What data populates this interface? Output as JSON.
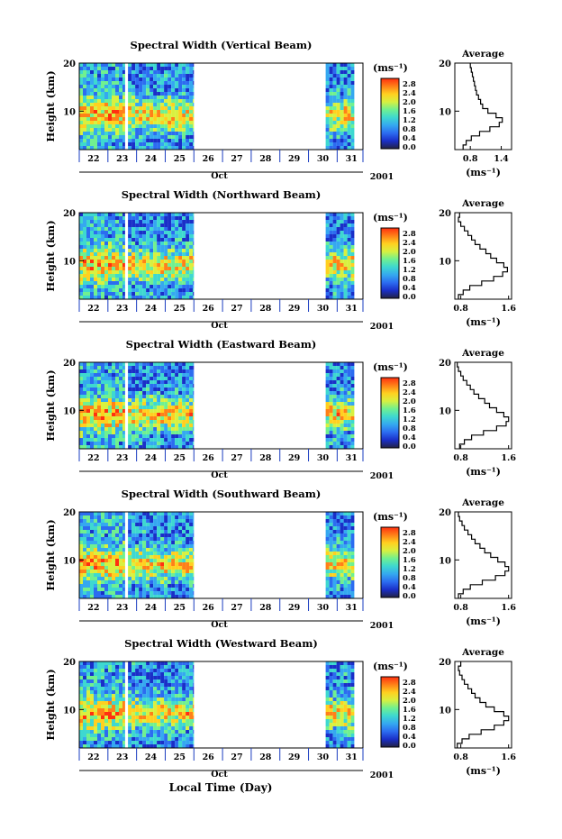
{
  "xlabel": "Local Time (Day)",
  "colorbar": {
    "unit": "(ms⁻¹)",
    "ticks": [
      "2.8",
      "2.4",
      "2.0",
      "1.6",
      "1.2",
      "0.8",
      "0.4",
      "0.0"
    ],
    "colors": [
      "#222244",
      "#1a2fc8",
      "#2c6cf0",
      "#35a8f0",
      "#3ed8d0",
      "#70f090",
      "#d8f040",
      "#ffd020",
      "#ff8018",
      "#ff3010"
    ]
  },
  "chart_data": [
    {
      "type": "heatmap",
      "title": "Spectral Width (Vertical Beam)",
      "ylabel": "Height (km)",
      "ylim": [
        2,
        20
      ],
      "y_ticks": [
        "20",
        "10"
      ],
      "x_ticks": [
        "22",
        "23",
        "24",
        "25",
        "26",
        "27",
        "28",
        "29",
        "30",
        "31"
      ],
      "month": "Oct",
      "year": "2001",
      "data_coverage_days": [
        [
          22,
          23.6
        ],
        [
          23.7,
          26.0
        ],
        [
          30.6,
          31.6
        ]
      ],
      "average_profile": {
        "title": "Average",
        "xlabel": "(ms⁻¹)",
        "x_ticks": [
          "0.8",
          "1.4"
        ],
        "xlim": [
          0.5,
          1.6
        ],
        "y_ticks": [
          "20",
          "10"
        ],
        "values": [
          0.66,
          0.72,
          0.82,
          0.98,
          1.18,
          1.36,
          1.42,
          1.3,
          1.14,
          1.04,
          1.0,
          0.96,
          0.92,
          0.9,
          0.88,
          0.86,
          0.84,
          0.82,
          0.8
        ]
      }
    },
    {
      "type": "heatmap",
      "title": "Spectral Width (Northward Beam)",
      "ylabel": "Height (km)",
      "ylim": [
        2,
        20
      ],
      "y_ticks": [
        "20",
        "10"
      ],
      "x_ticks": [
        "22",
        "23",
        "24",
        "25",
        "26",
        "27",
        "28",
        "29",
        "30",
        "31"
      ],
      "month": "Oct",
      "year": "2001",
      "data_coverage_days": [
        [
          22,
          23.6
        ],
        [
          23.7,
          26.0
        ],
        [
          30.6,
          31.6
        ]
      ],
      "average_profile": {
        "title": "Average",
        "xlabel": "(ms⁻¹)",
        "x_ticks": [
          "0.8",
          "1.6"
        ],
        "xlim": [
          0.7,
          1.65
        ],
        "y_ticks": [
          "20",
          "10"
        ],
        "values": [
          0.76,
          0.84,
          0.95,
          1.15,
          1.35,
          1.5,
          1.58,
          1.52,
          1.4,
          1.3,
          1.22,
          1.12,
          1.04,
          0.98,
          0.92,
          0.86,
          0.8,
          0.76,
          0.78
        ]
      }
    },
    {
      "type": "heatmap",
      "title": "Spectral Width (Eastward Beam)",
      "ylabel": "Height (km)",
      "ylim": [
        2,
        20
      ],
      "y_ticks": [
        "20",
        "10"
      ],
      "x_ticks": [
        "22",
        "23",
        "24",
        "25",
        "26",
        "27",
        "28",
        "29",
        "30",
        "31"
      ],
      "month": "Oct",
      "year": "2001",
      "data_coverage_days": [
        [
          22,
          23.6
        ],
        [
          23.7,
          26.0
        ],
        [
          30.6,
          31.6
        ]
      ],
      "average_profile": {
        "title": "Average",
        "xlabel": "(ms⁻¹)",
        "x_ticks": [
          "0.8",
          "1.6"
        ],
        "xlim": [
          0.7,
          1.65
        ],
        "y_ticks": [
          "20",
          "10"
        ],
        "values": [
          0.78,
          0.86,
          0.98,
          1.18,
          1.4,
          1.56,
          1.6,
          1.52,
          1.4,
          1.28,
          1.2,
          1.1,
          1.02,
          0.96,
          0.9,
          0.84,
          0.8,
          0.76,
          0.74
        ]
      }
    },
    {
      "type": "heatmap",
      "title": "Spectral Width (Southward Beam)",
      "ylabel": "Height (km)",
      "ylim": [
        2,
        20
      ],
      "y_ticks": [
        "20",
        "10"
      ],
      "x_ticks": [
        "22",
        "23",
        "24",
        "25",
        "26",
        "27",
        "28",
        "29",
        "30",
        "31"
      ],
      "month": "Oct",
      "year": "2001",
      "data_coverage_days": [
        [
          22,
          23.6
        ],
        [
          23.7,
          26.0
        ],
        [
          30.6,
          31.6
        ]
      ],
      "average_profile": {
        "title": "Average",
        "xlabel": "(ms⁻¹)",
        "x_ticks": [
          "0.8",
          "1.6"
        ],
        "xlim": [
          0.7,
          1.65
        ],
        "y_ticks": [
          "20",
          "10"
        ],
        "values": [
          0.76,
          0.84,
          0.96,
          1.16,
          1.38,
          1.54,
          1.6,
          1.54,
          1.42,
          1.3,
          1.2,
          1.12,
          1.04,
          0.98,
          0.92,
          0.86,
          0.82,
          0.78,
          0.76
        ]
      }
    },
    {
      "type": "heatmap",
      "title": "Spectral Width (Westward Beam)",
      "ylabel": "Height (km)",
      "ylim": [
        2,
        20
      ],
      "y_ticks": [
        "20",
        "10"
      ],
      "x_ticks": [
        "22",
        "23",
        "24",
        "25",
        "26",
        "27",
        "28",
        "29",
        "30",
        "31"
      ],
      "month": "Oct",
      "year": "2001",
      "data_coverage_days": [
        [
          22,
          23.6
        ],
        [
          23.7,
          26.0
        ],
        [
          30.6,
          31.6
        ]
      ],
      "average_profile": {
        "title": "Average",
        "xlabel": "(ms⁻¹)",
        "x_ticks": [
          "0.8",
          "1.6"
        ],
        "xlim": [
          0.7,
          1.65
        ],
        "y_ticks": [
          "20",
          "10"
        ],
        "values": [
          0.74,
          0.82,
          0.94,
          1.14,
          1.36,
          1.52,
          1.6,
          1.52,
          1.36,
          1.22,
          1.12,
          1.04,
          0.98,
          0.92,
          0.86,
          0.82,
          0.78,
          0.76,
          0.8
        ]
      }
    }
  ]
}
